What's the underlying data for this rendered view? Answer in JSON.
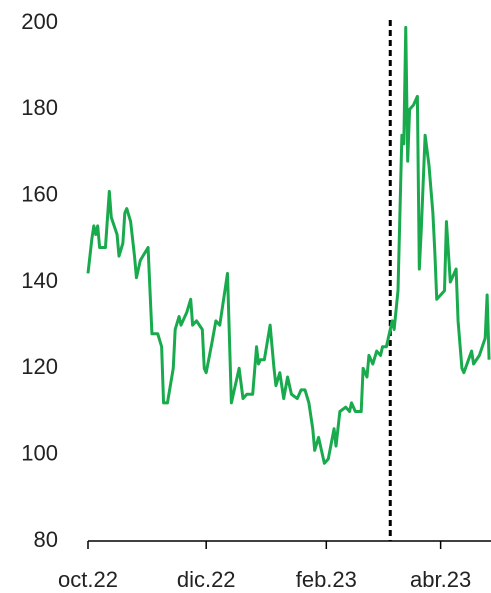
{
  "chart_data": {
    "type": "line",
    "x": [
      0,
      2,
      3,
      4,
      5,
      6,
      9,
      11,
      12,
      15,
      16,
      18,
      19,
      20,
      22,
      24,
      25,
      27,
      31,
      33,
      36,
      38,
      39,
      41,
      44,
      45,
      47,
      48,
      51,
      53,
      54,
      56,
      59,
      60,
      61,
      64,
      66,
      68,
      72,
      74,
      76,
      78,
      80,
      82,
      85,
      87,
      88,
      89,
      91,
      94,
      96,
      97,
      99,
      101,
      103,
      105,
      108,
      110,
      112,
      114,
      116,
      117,
      119,
      122,
      124,
      127,
      128,
      130,
      133,
      135,
      136,
      138,
      141,
      142,
      144,
      145,
      147,
      149,
      151,
      152,
      154,
      157,
      158,
      160,
      162,
      163,
      164,
      165,
      166,
      168,
      170,
      171,
      172,
      174,
      176,
      178,
      179,
      180,
      182,
      184,
      185,
      187,
      188,
      190,
      191,
      193,
      194,
      198,
      199,
      202,
      205,
      206,
      207
    ],
    "series": [
      {
        "color": "#1aaa4e",
        "values": [
          142,
          150,
          153,
          151,
          153,
          148,
          148,
          161,
          155,
          151,
          146,
          149,
          156,
          157,
          154,
          146,
          141,
          145,
          148,
          128,
          128,
          125,
          112,
          112,
          120,
          129,
          132,
          130,
          133,
          136,
          130,
          131,
          129,
          120,
          119,
          126,
          131,
          130,
          142,
          112,
          116,
          120,
          113,
          114,
          114,
          125,
          121,
          122,
          122,
          130,
          120,
          116,
          119,
          113,
          118,
          114,
          113,
          115,
          115,
          112,
          106,
          101,
          104,
          98,
          99,
          106,
          102,
          110,
          111,
          110,
          112,
          110,
          110,
          120,
          118,
          123,
          121,
          124,
          123,
          125,
          125,
          131,
          129,
          138,
          174,
          172,
          199,
          168,
          180,
          181,
          183,
          143,
          152,
          174,
          167,
          156,
          147,
          136,
          137,
          138,
          154,
          140,
          141,
          143,
          131,
          120,
          119,
          124,
          121,
          123,
          127,
          137,
          122
        ]
      }
    ],
    "xlim": [
      0,
      208
    ],
    "xticks": [
      {
        "value": 0,
        "label": "oct.22"
      },
      {
        "value": 61,
        "label": "dic.22"
      },
      {
        "value": 123,
        "label": "feb.23"
      },
      {
        "value": 182,
        "label": "abr.23"
      }
    ],
    "ylim": [
      80,
      200
    ],
    "yticks": [
      80,
      100,
      120,
      140,
      160,
      180,
      200
    ],
    "vline": 156
  }
}
